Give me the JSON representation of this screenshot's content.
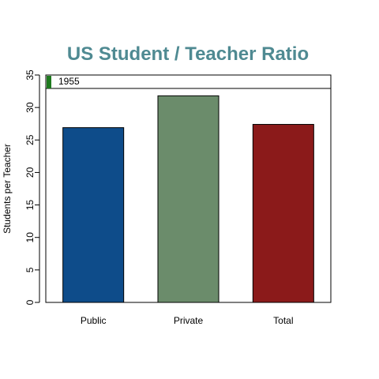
{
  "chart_data": {
    "type": "bar",
    "title": "US Student / Teacher Ratio",
    "xlabel": "",
    "ylabel": "Students per Teacher",
    "categories": [
      "Public",
      "Private",
      "Total"
    ],
    "values": [
      26.9,
      31.8,
      27.4
    ],
    "colors": [
      "#0e4c8a",
      "#6b8c6b",
      "#8b1a1a"
    ],
    "ylim": [
      0,
      35
    ],
    "yticks": [
      0,
      5,
      10,
      15,
      20,
      25,
      30,
      35
    ],
    "grid": false
  },
  "year_slider": {
    "label": "1955",
    "handle_color": "#1f7a1f",
    "position_fraction": 0.0
  }
}
